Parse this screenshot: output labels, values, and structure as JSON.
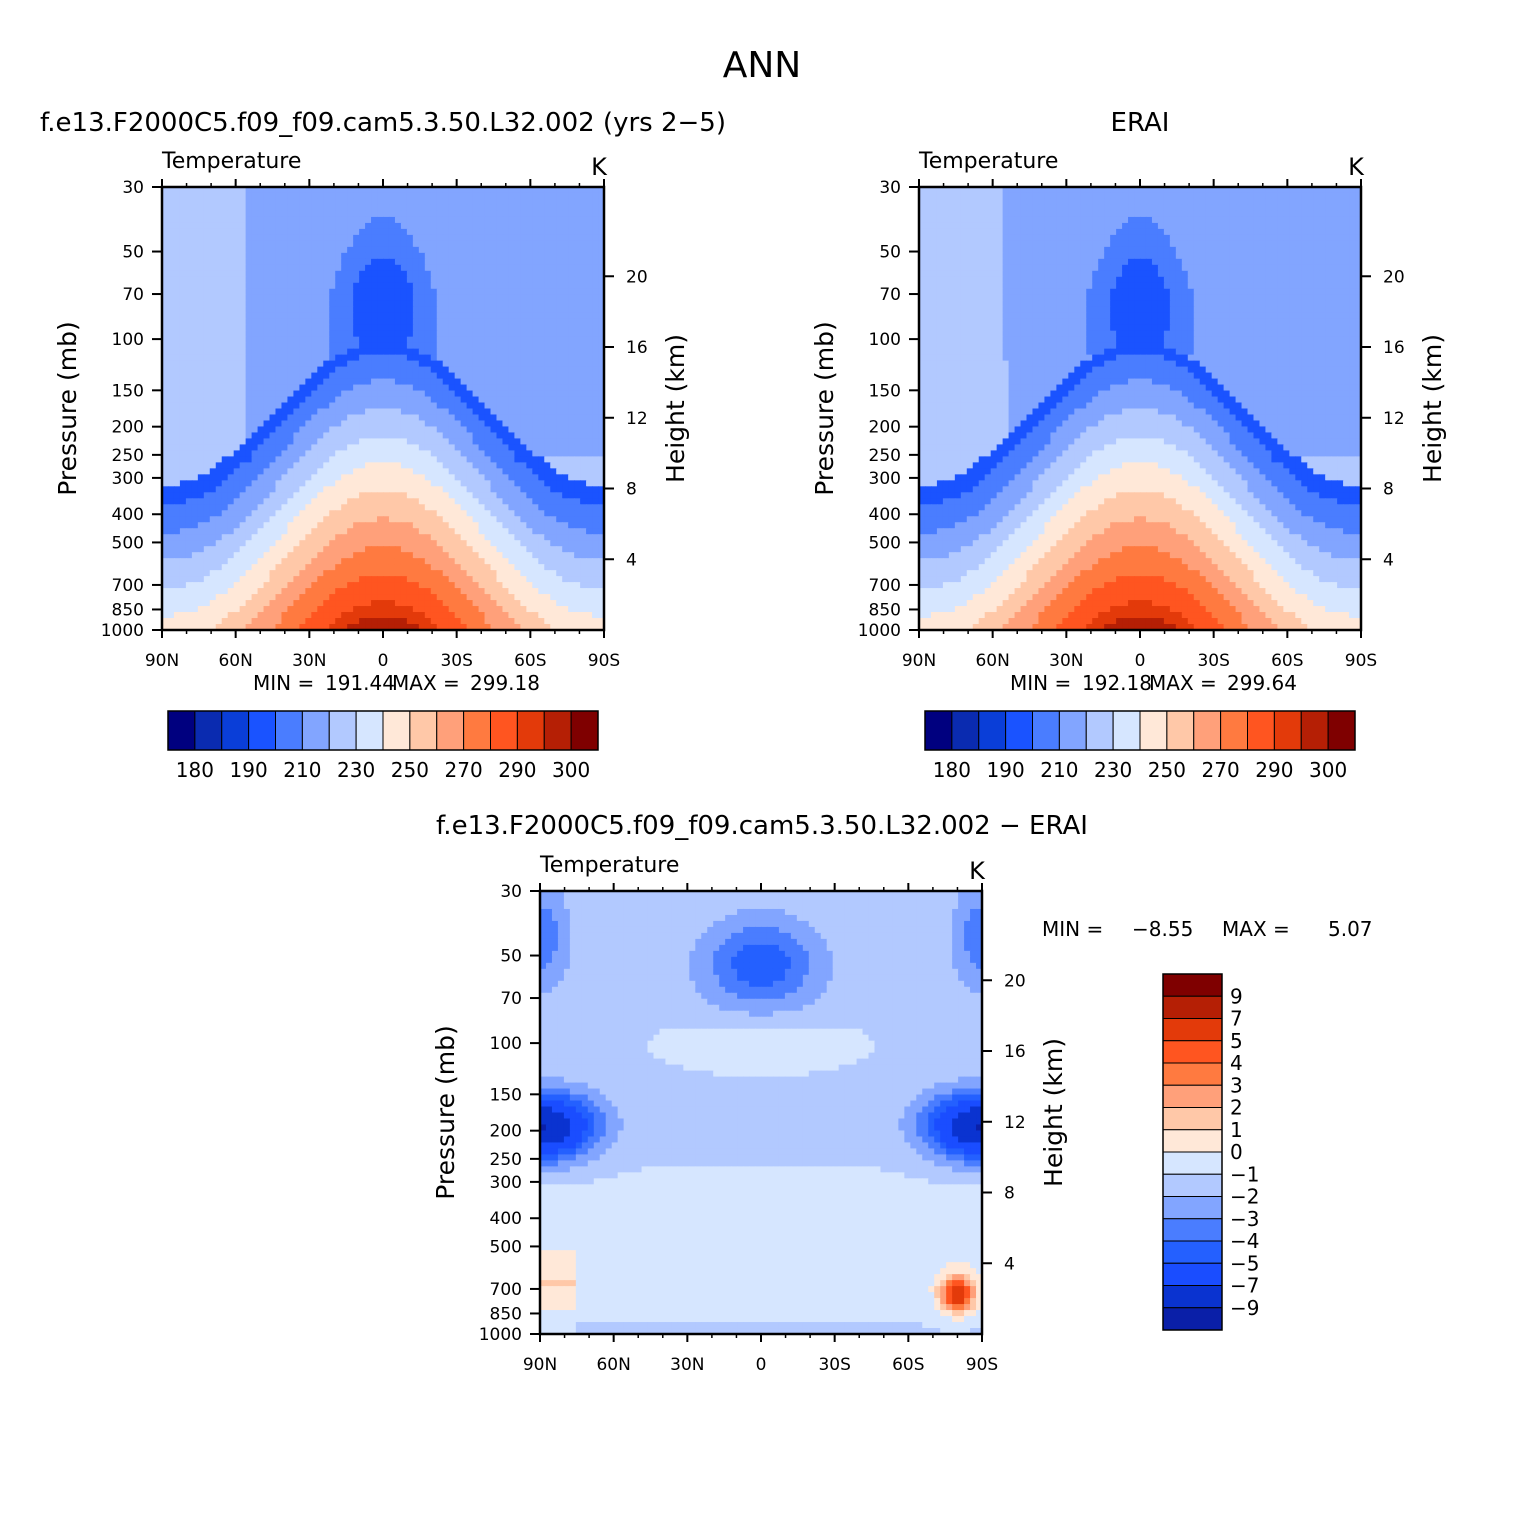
{
  "page_title": "ANN",
  "chart_data": [
    {
      "type": "heatmap",
      "id": "model",
      "title": "f.e13.F2000C5.f09_f09.cam5.3.50.L32.002 (yrs 2−5)",
      "variable_label": "Temperature",
      "units": "K",
      "xlabel": "",
      "ylabel": "Pressure (mb)",
      "y2label": "Height (km)",
      "xticks": [
        "90N",
        "60N",
        "30N",
        "0",
        "30S",
        "60S",
        "90S"
      ],
      "yticks": [
        "30",
        "50",
        "70",
        "100",
        "150",
        "200",
        "250",
        "300",
        "400",
        "500",
        "700",
        "850",
        "1000"
      ],
      "y2ticks": [
        "20",
        "16",
        "12",
        "8",
        "4"
      ],
      "min_label": "MIN =",
      "min_value": "191.44",
      "max_label": "MAX =",
      "max_value": "299.18",
      "colorbar_labels": [
        "180",
        "190",
        "210",
        "230",
        "250",
        "270",
        "290",
        "300"
      ],
      "colorbar_levels": [
        180,
        185,
        190,
        200,
        210,
        220,
        230,
        240,
        250,
        260,
        270,
        280,
        290,
        295,
        300
      ],
      "field_params": {
        "surface_temp_equator": 300,
        "tropopause_min": 191.5,
        "polar_adjust": 0
      }
    },
    {
      "type": "heatmap",
      "id": "obs",
      "title": "ERAI",
      "variable_label": "Temperature",
      "units": "K",
      "xlabel": "",
      "ylabel": "Pressure (mb)",
      "y2label": "Height (km)",
      "xticks": [
        "90N",
        "60N",
        "30N",
        "0",
        "30S",
        "60S",
        "90S"
      ],
      "yticks": [
        "30",
        "50",
        "70",
        "100",
        "150",
        "200",
        "250",
        "300",
        "400",
        "500",
        "700",
        "850",
        "1000"
      ],
      "y2ticks": [
        "20",
        "16",
        "12",
        "8",
        "4"
      ],
      "min_label": "MIN =",
      "min_value": "192.18",
      "max_label": "MAX =",
      "max_value": "299.64",
      "colorbar_labels": [
        "180",
        "190",
        "210",
        "230",
        "250",
        "270",
        "290",
        "300"
      ],
      "colorbar_levels": [
        180,
        185,
        190,
        200,
        210,
        220,
        230,
        240,
        250,
        260,
        270,
        280,
        290,
        295,
        300
      ],
      "field_params": {
        "surface_temp_equator": 300,
        "tropopause_min": 192.2,
        "polar_adjust": 1
      }
    },
    {
      "type": "heatmap",
      "id": "diff",
      "title": "f.e13.F2000C5.f09_f09.cam5.3.50.L32.002 − ERAI",
      "variable_label": "Temperature",
      "units": "K",
      "xlabel": "",
      "ylabel": "Pressure (mb)",
      "y2label": "Height (km)",
      "xticks": [
        "90N",
        "60N",
        "30N",
        "0",
        "30S",
        "60S",
        "90S"
      ],
      "yticks": [
        "30",
        "50",
        "70",
        "100",
        "150",
        "200",
        "250",
        "300",
        "400",
        "500",
        "700",
        "850",
        "1000"
      ],
      "y2ticks": [
        "20",
        "16",
        "12",
        "8",
        "4"
      ],
      "min_label": "MIN =",
      "min_value": "−8.55",
      "max_label": "MAX =",
      "max_value": "5.07",
      "colorbar_labels": [
        "9",
        "7",
        "5",
        "4",
        "3",
        "2",
        "1",
        "0",
        "−1",
        "−2",
        "−3",
        "−4",
        "−5",
        "−7",
        "−9"
      ],
      "colorbar_levels": [
        -9,
        -7,
        -5,
        -4,
        -3,
        -2,
        -1,
        0,
        1,
        2,
        3,
        4,
        5,
        7,
        9
      ]
    }
  ],
  "colors": {
    "temperature_palette": [
      "#00007f",
      "#0a2bb0",
      "#0a3ed8",
      "#1a53ff",
      "#4a7dff",
      "#82a5ff",
      "#b2c9ff",
      "#d6e6ff",
      "#ffe8d8",
      "#ffc8a8",
      "#ffa07a",
      "#ff7a40",
      "#ff5520",
      "#e33a0a",
      "#b51f05",
      "#7f0000"
    ],
    "difference_palette": [
      "#03037f",
      "#0a1fa8",
      "#0a33d0",
      "#1a4dff",
      "#2460ff",
      "#4a7dff",
      "#82a5ff",
      "#b2c9ff",
      "#d6e6ff",
      "#ffe8d8",
      "#ffc8a8",
      "#ffa07a",
      "#ff7a40",
      "#ff5520",
      "#e33a0a",
      "#b51f05",
      "#7f0000"
    ]
  }
}
